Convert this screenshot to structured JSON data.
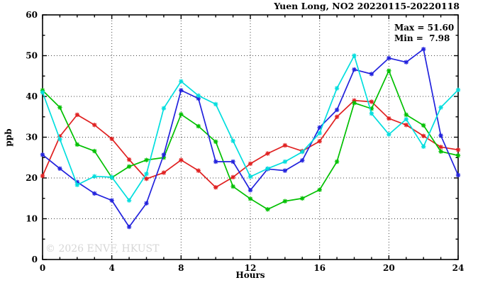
{
  "header": {
    "title": "Yuen Long, NO2 20220115-20220118"
  },
  "annotations": {
    "max_label": "Max = 51.60",
    "min_label": "Min =  7.98"
  },
  "watermark": "© 2026 ENVF, HKUST",
  "chart_data": {
    "type": "line",
    "title": "Yuen Long, NO2 20220115-20220118",
    "xlabel": "Hours",
    "ylabel": "ppb",
    "xlim": [
      0,
      24
    ],
    "ylim": [
      0,
      60
    ],
    "x_major_ticks": [
      0,
      4,
      8,
      12,
      16,
      20,
      24
    ],
    "x_minor_step": 1,
    "y_major_ticks": [
      0,
      10,
      20,
      30,
      40,
      50,
      60
    ],
    "y_minor_step": 5,
    "grid": true,
    "legend_position": "none",
    "stats": {
      "max": 51.6,
      "min": 7.98
    },
    "x": [
      0,
      1,
      2,
      3,
      4,
      5,
      6,
      7,
      8,
      9,
      10,
      11,
      12,
      13,
      14,
      15,
      16,
      17,
      18,
      19,
      20,
      21,
      22,
      23,
      24
    ],
    "series": [
      {
        "name": "red",
        "color": "#e02020",
        "values": [
          20.5,
          30.2,
          35.5,
          33.0,
          29.6,
          24.5,
          19.8,
          21.3,
          24.4,
          21.8,
          17.7,
          20.2,
          23.5,
          26.0,
          28.0,
          26.6,
          29.0,
          35.0,
          39.0,
          38.7,
          34.6,
          33.0,
          30.3,
          27.6,
          26.9
        ]
      },
      {
        "name": "green",
        "color": "#00c000",
        "values": [
          41.5,
          37.3,
          28.2,
          26.6,
          20.1,
          22.8,
          24.4,
          25.0,
          35.6,
          32.7,
          28.9,
          17.9,
          14.9,
          12.3,
          14.3,
          15.0,
          17.1,
          24.0,
          38.4,
          37.0,
          46.3,
          35.5,
          32.9,
          26.5,
          25.5
        ]
      },
      {
        "name": "blue",
        "color": "#2222dd",
        "values": [
          25.7,
          22.3,
          19.0,
          16.2,
          14.5,
          8.0,
          13.8,
          25.7,
          41.5,
          39.5,
          24.0,
          24.0,
          17.0,
          22.2,
          21.8,
          24.3,
          32.4,
          36.7,
          46.6,
          45.5,
          49.4,
          48.4,
          51.6,
          30.4,
          20.7
        ]
      },
      {
        "name": "cyan",
        "color": "#00dede",
        "values": [
          41.0,
          29.5,
          18.3,
          20.4,
          20.2,
          14.5,
          21.0,
          37.1,
          43.7,
          40.2,
          38.1,
          29.1,
          20.3,
          22.3,
          24.0,
          26.4,
          31.0,
          42.0,
          50.0,
          35.8,
          30.7,
          34.4,
          27.7,
          37.3,
          41.6
        ]
      }
    ]
  }
}
